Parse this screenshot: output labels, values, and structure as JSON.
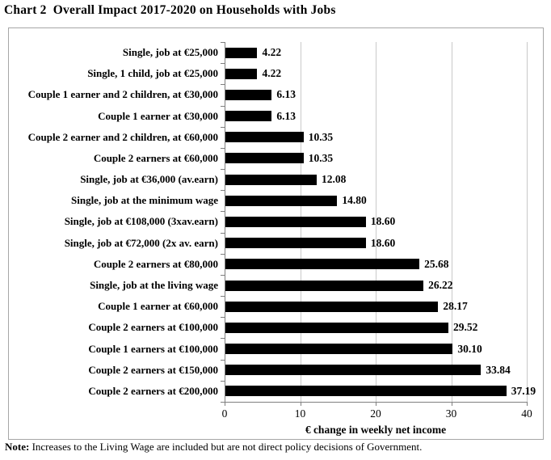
{
  "title": "Chart 2  Overall Impact 2017-2020 on Households with Jobs",
  "note": {
    "label": "Note:",
    "text": " Increases to the Living Wage are included but are not direct policy decisions of Government."
  },
  "colors": {
    "bar": "#000000",
    "gridline": "#c9c9c9",
    "axis": "#7f7f7f",
    "box_border": "#a6a6a6",
    "background": "#ffffff"
  },
  "chart_data": {
    "type": "bar",
    "orientation": "horizontal",
    "title": "Chart 2  Overall Impact 2017-2020 on Households with Jobs",
    "xlabel": "€ change in weekly net income",
    "xlim": [
      0,
      40
    ],
    "xticks": [
      0,
      10,
      20,
      30,
      40
    ],
    "grid": true,
    "legend_position": "none",
    "categories": [
      "Single, job at €25,000",
      "Single, 1 child, job at €25,000",
      "Couple 1 earner and 2 children, at €30,000",
      "Couple 1 earner at €30,000",
      "Couple 2 earner and 2 children, at €60,000",
      "Couple 2 earners at €60,000",
      "Single, job at €36,000 (av.earn)",
      "Single, job at the minimum wage",
      "Single, job at €108,000 (3xav.earn)",
      "Single, job at €72,000 (2x av. earn)",
      "Couple 2 earners at €80,000",
      "Single, job at the living wage",
      "Couple 1 earner at €60,000",
      "Couple 2 earners at €100,000",
      "Couple 1 earners at €100,000",
      "Couple 2 earners at €150,000",
      "Couple 2 earners at €200,000"
    ],
    "values": [
      4.22,
      4.22,
      6.13,
      6.13,
      10.35,
      10.35,
      12.08,
      14.8,
      18.6,
      18.6,
      25.68,
      26.22,
      28.17,
      29.52,
      30.1,
      33.84,
      37.19
    ],
    "value_labels": [
      "4.22",
      "4.22",
      "6.13",
      "6.13",
      "10.35",
      "10.35",
      "12.08",
      "14.80",
      "18.60",
      "18.60",
      "25.68",
      "26.22",
      "28.17",
      "29.52",
      "30.10",
      "33.84",
      "37.19"
    ]
  }
}
